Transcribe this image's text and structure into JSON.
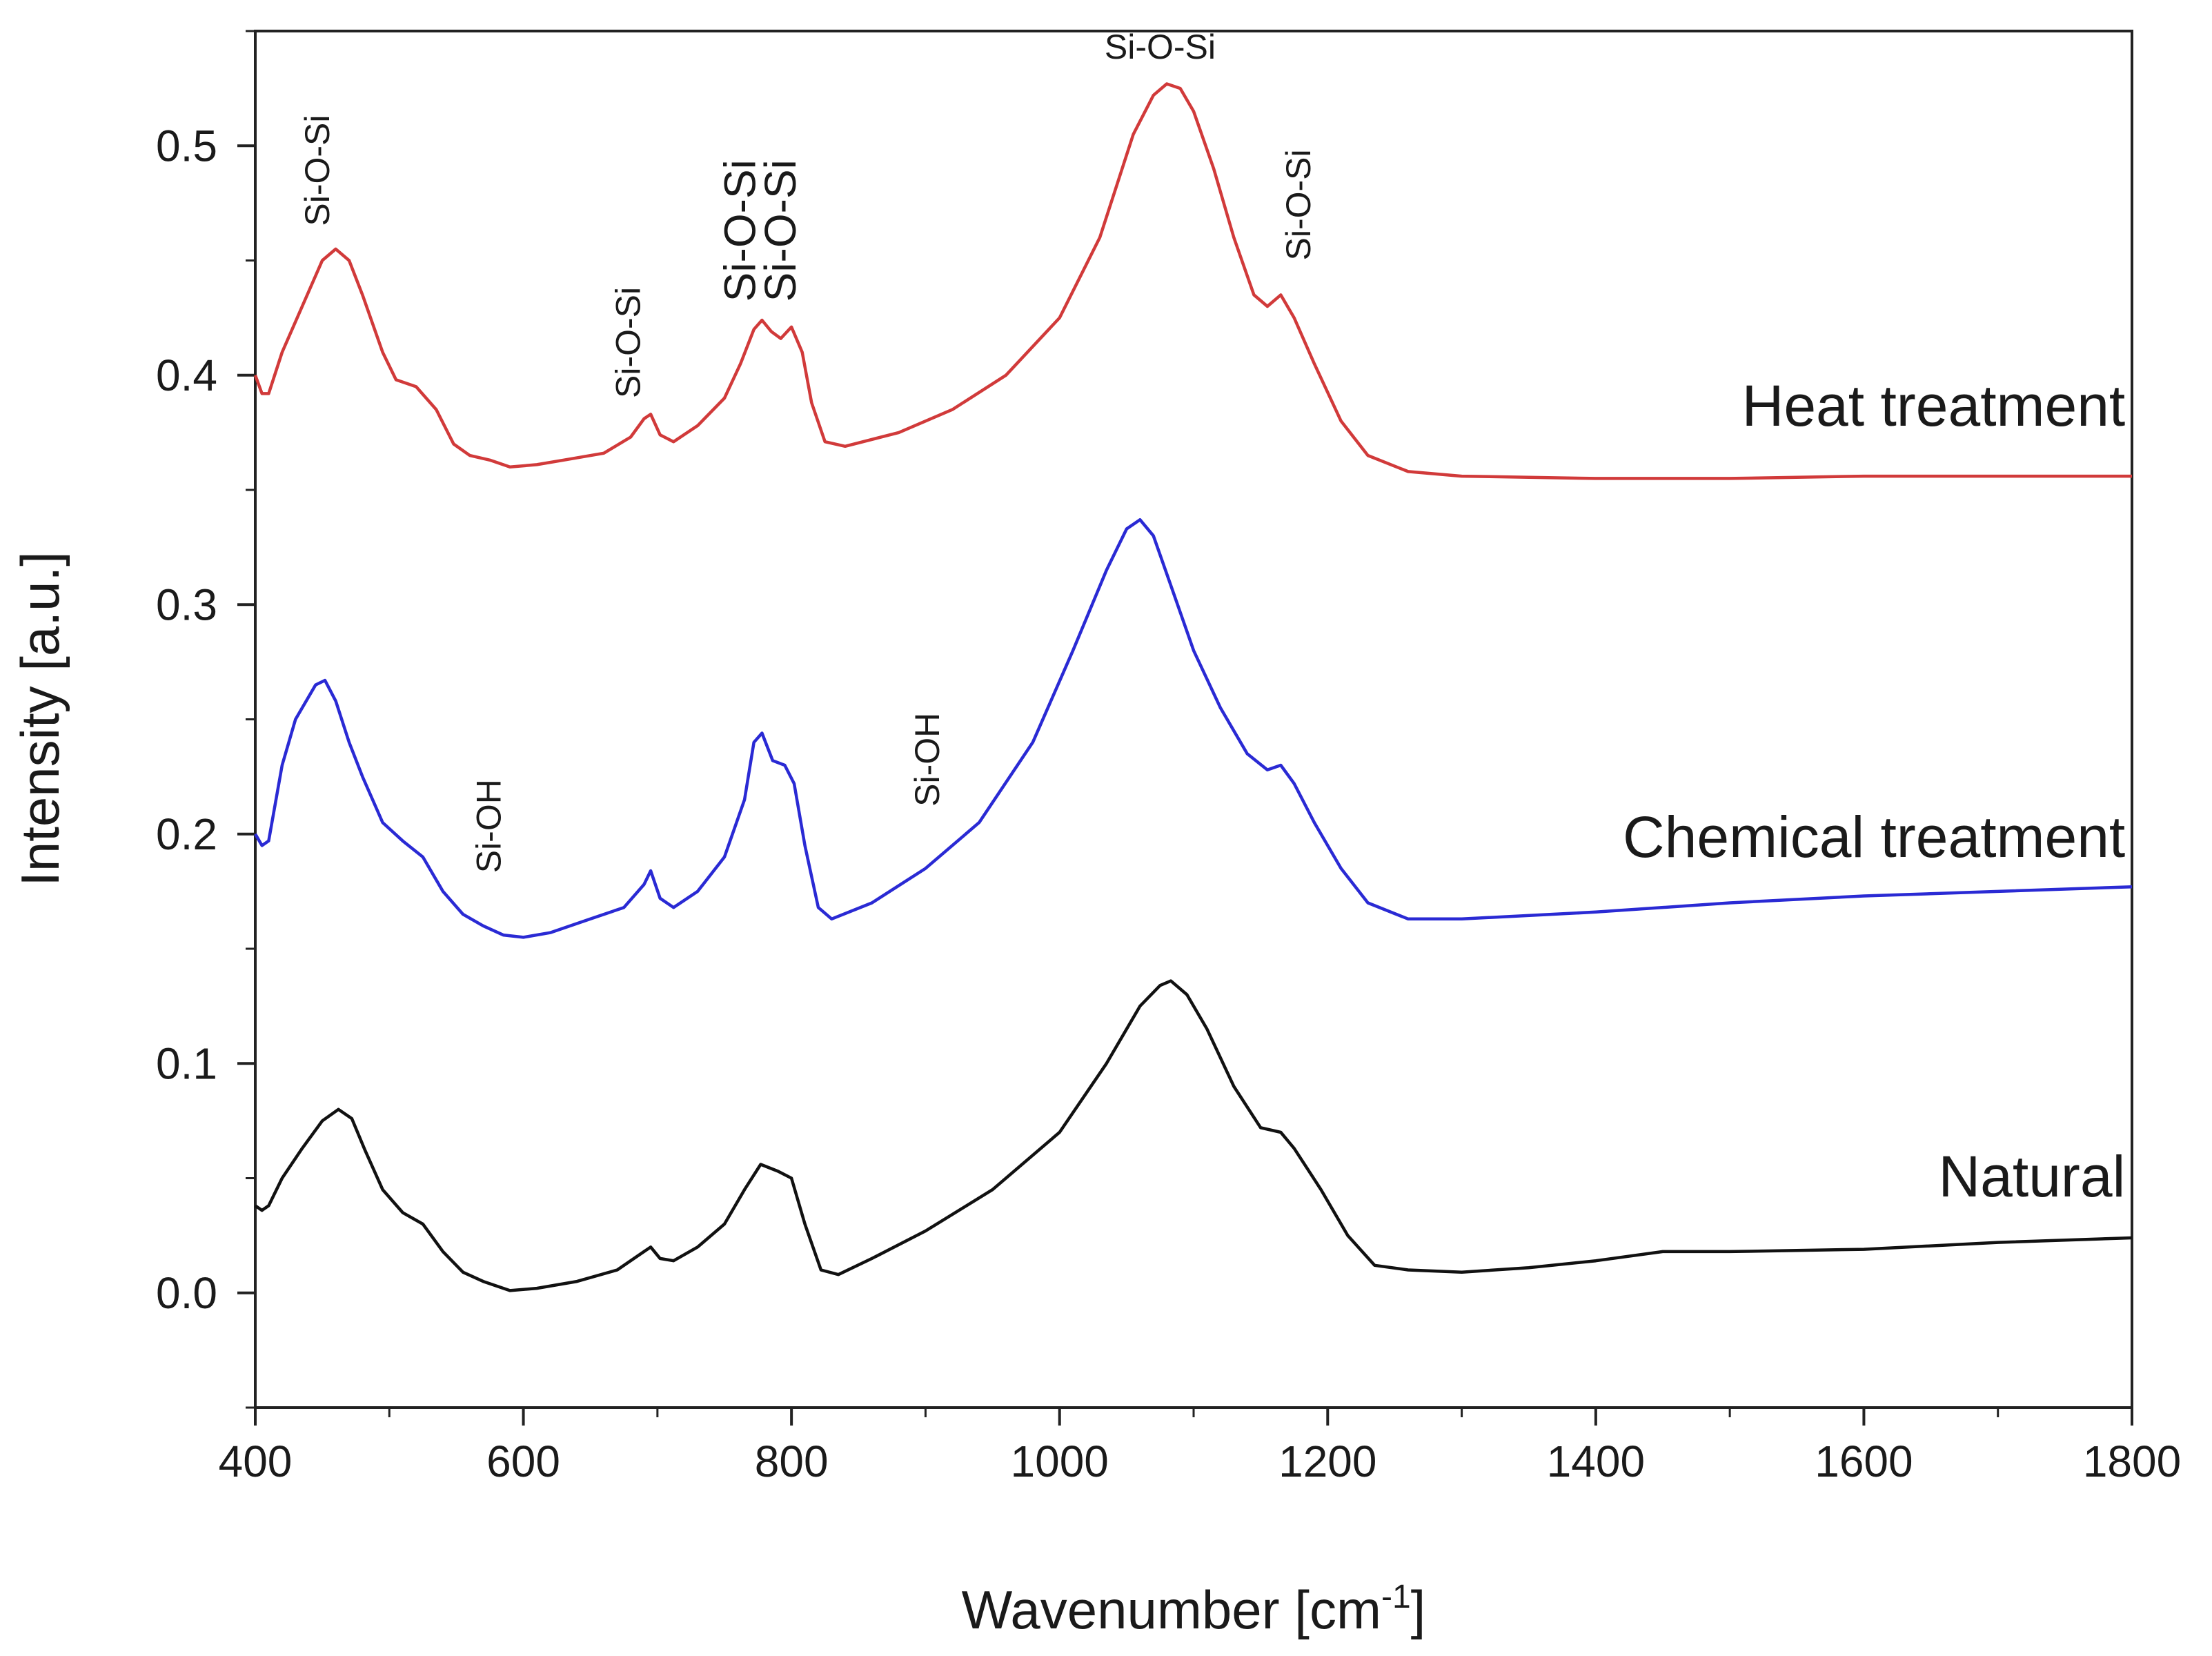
{
  "chart_data": {
    "type": "line",
    "title": "",
    "xlabel": "Wavenumber [cm",
    "xlabel_sup": "-1",
    "xlabel_end": "]",
    "ylabel": "Intensity [a.u.]",
    "xlim": [
      400,
      1800
    ],
    "ylim": [
      -0.05,
      0.55
    ],
    "xticks": [
      400,
      600,
      800,
      1000,
      1200,
      1400,
      1600,
      1800
    ],
    "xtick_labels": [
      "400",
      "600",
      "800",
      "1000",
      "1200",
      "1400",
      "1600",
      "1800"
    ],
    "yticks": [
      0.0,
      0.1,
      0.2,
      0.3,
      0.4,
      0.5
    ],
    "ytick_labels": [
      "0.0",
      "0.1",
      "0.2",
      "0.3",
      "0.4",
      "0.5"
    ],
    "grid": false,
    "series": [
      {
        "name": "Heat treatment",
        "color": "#d13a3a",
        "points": [
          [
            400,
            0.4
          ],
          [
            405,
            0.392
          ],
          [
            410,
            0.392
          ],
          [
            420,
            0.41
          ],
          [
            435,
            0.43
          ],
          [
            450,
            0.45
          ],
          [
            460,
            0.455
          ],
          [
            470,
            0.45
          ],
          [
            480,
            0.435
          ],
          [
            495,
            0.41
          ],
          [
            505,
            0.398
          ],
          [
            520,
            0.395
          ],
          [
            535,
            0.385
          ],
          [
            548,
            0.37
          ],
          [
            560,
            0.365
          ],
          [
            575,
            0.363
          ],
          [
            590,
            0.36
          ],
          [
            610,
            0.361
          ],
          [
            630,
            0.363
          ],
          [
            660,
            0.366
          ],
          [
            680,
            0.373
          ],
          [
            690,
            0.381
          ],
          [
            695,
            0.383
          ],
          [
            702,
            0.374
          ],
          [
            712,
            0.371
          ],
          [
            730,
            0.378
          ],
          [
            750,
            0.39
          ],
          [
            762,
            0.405
          ],
          [
            772,
            0.42
          ],
          [
            778,
            0.424
          ],
          [
            785,
            0.419
          ],
          [
            792,
            0.416
          ],
          [
            800,
            0.421
          ],
          [
            808,
            0.41
          ],
          [
            815,
            0.388
          ],
          [
            825,
            0.371
          ],
          [
            840,
            0.369
          ],
          [
            880,
            0.375
          ],
          [
            920,
            0.385
          ],
          [
            960,
            0.4
          ],
          [
            1000,
            0.425
          ],
          [
            1030,
            0.46
          ],
          [
            1055,
            0.505
          ],
          [
            1070,
            0.522
          ],
          [
            1080,
            0.527
          ],
          [
            1090,
            0.525
          ],
          [
            1100,
            0.515
          ],
          [
            1115,
            0.49
          ],
          [
            1130,
            0.46
          ],
          [
            1145,
            0.435
          ],
          [
            1155,
            0.43
          ],
          [
            1165,
            0.435
          ],
          [
            1175,
            0.425
          ],
          [
            1190,
            0.405
          ],
          [
            1210,
            0.38
          ],
          [
            1230,
            0.365
          ],
          [
            1260,
            0.358
          ],
          [
            1300,
            0.356
          ],
          [
            1400,
            0.355
          ],
          [
            1500,
            0.355
          ],
          [
            1600,
            0.356
          ],
          [
            1700,
            0.356
          ],
          [
            1800,
            0.356
          ]
        ]
      },
      {
        "name": "Chemical treatment",
        "color": "#2a2ad4",
        "points": [
          [
            400,
            0.2
          ],
          [
            405,
            0.195
          ],
          [
            410,
            0.197
          ],
          [
            420,
            0.23
          ],
          [
            430,
            0.25
          ],
          [
            445,
            0.265
          ],
          [
            452,
            0.267
          ],
          [
            460,
            0.258
          ],
          [
            470,
            0.24
          ],
          [
            480,
            0.225
          ],
          [
            495,
            0.205
          ],
          [
            510,
            0.197
          ],
          [
            525,
            0.19
          ],
          [
            540,
            0.175
          ],
          [
            555,
            0.165
          ],
          [
            570,
            0.16
          ],
          [
            585,
            0.156
          ],
          [
            600,
            0.155
          ],
          [
            620,
            0.157
          ],
          [
            650,
            0.163
          ],
          [
            675,
            0.168
          ],
          [
            690,
            0.178
          ],
          [
            695,
            0.184
          ],
          [
            702,
            0.172
          ],
          [
            712,
            0.168
          ],
          [
            730,
            0.175
          ],
          [
            750,
            0.19
          ],
          [
            765,
            0.215
          ],
          [
            772,
            0.24
          ],
          [
            778,
            0.244
          ],
          [
            786,
            0.232
          ],
          [
            795,
            0.23
          ],
          [
            802,
            0.222
          ],
          [
            810,
            0.195
          ],
          [
            820,
            0.168
          ],
          [
            830,
            0.163
          ],
          [
            860,
            0.17
          ],
          [
            900,
            0.185
          ],
          [
            940,
            0.205
          ],
          [
            980,
            0.24
          ],
          [
            1010,
            0.28
          ],
          [
            1035,
            0.315
          ],
          [
            1050,
            0.333
          ],
          [
            1060,
            0.337
          ],
          [
            1070,
            0.33
          ],
          [
            1085,
            0.305
          ],
          [
            1100,
            0.28
          ],
          [
            1120,
            0.255
          ],
          [
            1140,
            0.235
          ],
          [
            1155,
            0.228
          ],
          [
            1165,
            0.23
          ],
          [
            1175,
            0.222
          ],
          [
            1190,
            0.205
          ],
          [
            1210,
            0.185
          ],
          [
            1230,
            0.17
          ],
          [
            1260,
            0.163
          ],
          [
            1300,
            0.163
          ],
          [
            1400,
            0.166
          ],
          [
            1500,
            0.17
          ],
          [
            1600,
            0.173
          ],
          [
            1700,
            0.175
          ],
          [
            1800,
            0.177
          ]
        ]
      },
      {
        "name": "Natural",
        "color": "#111111",
        "points": [
          [
            400,
            0.038
          ],
          [
            405,
            0.036
          ],
          [
            410,
            0.038
          ],
          [
            420,
            0.05
          ],
          [
            435,
            0.063
          ],
          [
            450,
            0.075
          ],
          [
            462,
            0.08
          ],
          [
            472,
            0.076
          ],
          [
            482,
            0.062
          ],
          [
            495,
            0.045
          ],
          [
            510,
            0.035
          ],
          [
            525,
            0.03
          ],
          [
            540,
            0.018
          ],
          [
            555,
            0.009
          ],
          [
            570,
            0.005
          ],
          [
            590,
            0.001
          ],
          [
            610,
            0.002
          ],
          [
            640,
            0.005
          ],
          [
            670,
            0.01
          ],
          [
            690,
            0.018
          ],
          [
            695,
            0.02
          ],
          [
            702,
            0.015
          ],
          [
            712,
            0.014
          ],
          [
            730,
            0.02
          ],
          [
            750,
            0.03
          ],
          [
            765,
            0.045
          ],
          [
            777,
            0.056
          ],
          [
            790,
            0.053
          ],
          [
            800,
            0.05
          ],
          [
            810,
            0.03
          ],
          [
            822,
            0.01
          ],
          [
            835,
            0.008
          ],
          [
            860,
            0.015
          ],
          [
            900,
            0.027
          ],
          [
            950,
            0.045
          ],
          [
            1000,
            0.07
          ],
          [
            1035,
            0.1
          ],
          [
            1060,
            0.125
          ],
          [
            1075,
            0.134
          ],
          [
            1083,
            0.136
          ],
          [
            1095,
            0.13
          ],
          [
            1110,
            0.115
          ],
          [
            1130,
            0.09
          ],
          [
            1150,
            0.072
          ],
          [
            1165,
            0.07
          ],
          [
            1175,
            0.063
          ],
          [
            1195,
            0.045
          ],
          [
            1215,
            0.025
          ],
          [
            1235,
            0.012
          ],
          [
            1260,
            0.01
          ],
          [
            1300,
            0.009
          ],
          [
            1350,
            0.011
          ],
          [
            1400,
            0.014
          ],
          [
            1450,
            0.018
          ],
          [
            1500,
            0.018
          ],
          [
            1600,
            0.019
          ],
          [
            1700,
            0.022
          ],
          [
            1800,
            0.024
          ]
        ]
      }
    ],
    "annotations": [
      {
        "text": "Si-O-Si",
        "x": 455,
        "y": 0.465,
        "rotate": -90,
        "size": "sm"
      },
      {
        "text": "Si-O-Si",
        "x": 687,
        "y": 0.39,
        "rotate": -90,
        "size": "sm"
      },
      {
        "text": "Si-O-Si",
        "x": 773,
        "y": 0.432,
        "rotate": -90,
        "size": "lg"
      },
      {
        "text": "Si-O-Si",
        "x": 803,
        "y": 0.432,
        "rotate": -90,
        "size": "lg"
      },
      {
        "text": "Si-O-Si",
        "x": 1075,
        "y": 0.538,
        "rotate": 0,
        "size": "sm"
      },
      {
        "text": "Si-O-Si",
        "x": 1187,
        "y": 0.45,
        "rotate": -90,
        "size": "sm"
      },
      {
        "text": "Si-OH",
        "x": 583,
        "y": 0.183,
        "rotate": -90,
        "size": "sm"
      },
      {
        "text": "Si-OH",
        "x": 910,
        "y": 0.212,
        "rotate": -90,
        "size": "sm"
      }
    ],
    "series_labels": [
      {
        "text": "Heat treatment",
        "x": 1795,
        "y": 0.378
      },
      {
        "text": "Chemical treatment",
        "x": 1795,
        "y": 0.19
      },
      {
        "text": "Natural",
        "x": 1795,
        "y": 0.042
      }
    ]
  }
}
